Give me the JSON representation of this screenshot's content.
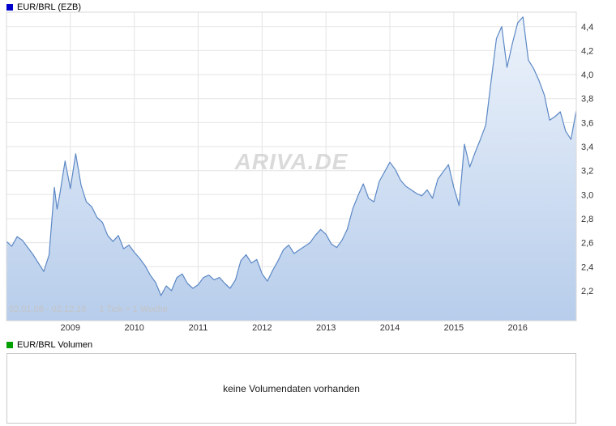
{
  "header": {
    "title": "EUR/BRL (EZB)",
    "marker_color": "#0000cc"
  },
  "watermark": "ARIVA.DE",
  "footer": {
    "range": "02.01.08 - 02.12.16",
    "tick_info": "1 Tick = 1 Woche"
  },
  "volume": {
    "title": "EUR/BRL Volumen",
    "marker_color": "#00a000",
    "empty_message": "keine Volumendaten vorhanden"
  },
  "chart_data": {
    "type": "area",
    "title": "EUR/BRL (EZB)",
    "xlabel": "",
    "ylabel": "",
    "x_range": [
      2008.0,
      2016.917
    ],
    "ylim": [
      1.95,
      4.52
    ],
    "x_ticks": [
      2009,
      2010,
      2011,
      2012,
      2013,
      2014,
      2015,
      2016
    ],
    "y_tick_values": [
      2.2,
      2.4,
      2.6,
      2.8,
      3.0,
      3.2,
      3.4,
      3.6,
      3.8,
      4.0,
      4.2,
      4.4
    ],
    "y_tick_labels": [
      "2,2",
      "2,4",
      "2,6",
      "2,8",
      "3,0",
      "3,2",
      "3,4",
      "3,6",
      "3,8",
      "4,0",
      "4,2",
      "4,4"
    ],
    "grid": true,
    "legend_position": "none",
    "line_color": "#5c88c5",
    "fill_top": "#edf3fb",
    "fill_bottom": "#b7cdeb",
    "x": [
      2008.0,
      2008.083,
      2008.167,
      2008.25,
      2008.333,
      2008.417,
      2008.5,
      2008.583,
      2008.667,
      2008.75,
      2008.792,
      2008.833,
      2008.917,
      2009.0,
      2009.083,
      2009.167,
      2009.25,
      2009.333,
      2009.417,
      2009.5,
      2009.583,
      2009.667,
      2009.75,
      2009.833,
      2009.917,
      2010.0,
      2010.083,
      2010.167,
      2010.25,
      2010.333,
      2010.417,
      2010.5,
      2010.583,
      2010.667,
      2010.75,
      2010.833,
      2010.917,
      2011.0,
      2011.083,
      2011.167,
      2011.25,
      2011.333,
      2011.417,
      2011.5,
      2011.583,
      2011.667,
      2011.75,
      2011.833,
      2011.917,
      2012.0,
      2012.083,
      2012.167,
      2012.25,
      2012.333,
      2012.417,
      2012.5,
      2012.583,
      2012.667,
      2012.75,
      2012.833,
      2012.917,
      2013.0,
      2013.083,
      2013.167,
      2013.25,
      2013.333,
      2013.417,
      2013.5,
      2013.583,
      2013.667,
      2013.75,
      2013.833,
      2013.917,
      2014.0,
      2014.083,
      2014.167,
      2014.25,
      2014.333,
      2014.417,
      2014.5,
      2014.583,
      2014.667,
      2014.75,
      2014.833,
      2014.917,
      2015.0,
      2015.083,
      2015.167,
      2015.25,
      2015.333,
      2015.417,
      2015.5,
      2015.583,
      2015.667,
      2015.75,
      2015.833,
      2015.917,
      2016.0,
      2016.083,
      2016.167,
      2016.25,
      2016.333,
      2016.417,
      2016.5,
      2016.583,
      2016.667,
      2016.75,
      2016.833,
      2016.917
    ],
    "values": [
      2.61,
      2.57,
      2.65,
      2.62,
      2.56,
      2.5,
      2.43,
      2.36,
      2.5,
      3.06,
      2.88,
      3.0,
      3.28,
      3.05,
      3.34,
      3.08,
      2.94,
      2.9,
      2.81,
      2.77,
      2.66,
      2.61,
      2.66,
      2.55,
      2.58,
      2.52,
      2.47,
      2.41,
      2.33,
      2.27,
      2.16,
      2.24,
      2.2,
      2.31,
      2.34,
      2.26,
      2.22,
      2.25,
      2.31,
      2.33,
      2.29,
      2.31,
      2.26,
      2.22,
      2.29,
      2.45,
      2.5,
      2.43,
      2.46,
      2.34,
      2.28,
      2.37,
      2.45,
      2.54,
      2.58,
      2.51,
      2.54,
      2.57,
      2.6,
      2.66,
      2.71,
      2.67,
      2.59,
      2.56,
      2.62,
      2.71,
      2.88,
      2.99,
      3.09,
      2.97,
      2.94,
      3.11,
      3.19,
      3.27,
      3.21,
      3.12,
      3.07,
      3.04,
      3.01,
      2.99,
      3.04,
      2.97,
      3.13,
      3.19,
      3.25,
      3.06,
      2.91,
      3.42,
      3.23,
      3.35,
      3.46,
      3.58,
      3.94,
      4.3,
      4.4,
      4.06,
      4.26,
      4.43,
      4.48,
      4.12,
      4.05,
      3.95,
      3.83,
      3.62,
      3.65,
      3.69,
      3.53,
      3.46,
      3.7
    ]
  }
}
